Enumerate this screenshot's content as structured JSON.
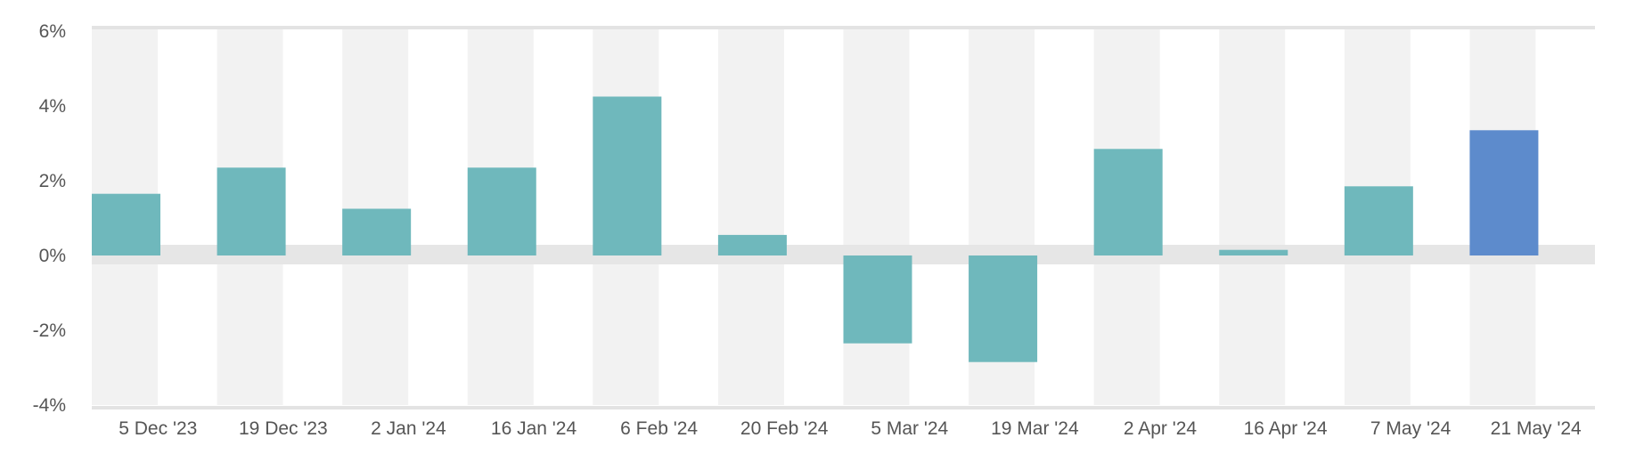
{
  "chart_data": {
    "type": "bar",
    "categories": [
      "5 Dec '23",
      "19 Dec '23",
      "2 Jan '24",
      "16 Jan '24",
      "6 Feb '24",
      "20 Feb '24",
      "5 Mar '24",
      "19 Mar '24",
      "2 Apr '24",
      "16 Apr '24",
      "7 May '24",
      "21 May '24"
    ],
    "values": [
      1.65,
      2.35,
      1.25,
      2.35,
      4.25,
      0.55,
      -2.35,
      -2.85,
      2.85,
      0.15,
      1.85,
      3.35
    ],
    "ylim": [
      -4,
      6
    ],
    "yticks": [
      6,
      4,
      2,
      0,
      -2,
      -4
    ],
    "ytick_labels": [
      "6%",
      "4%",
      "2%",
      "0%",
      "-2%",
      "-4%"
    ],
    "grid": false,
    "colors": {
      "bar": "#6fb8bc",
      "highlight": "#5d8bcc",
      "band": "#f2f2f2",
      "zero_band": "#e6e6e6",
      "axis": "#e3e3e3",
      "label": "#555555"
    },
    "highlight_index": 11
  }
}
